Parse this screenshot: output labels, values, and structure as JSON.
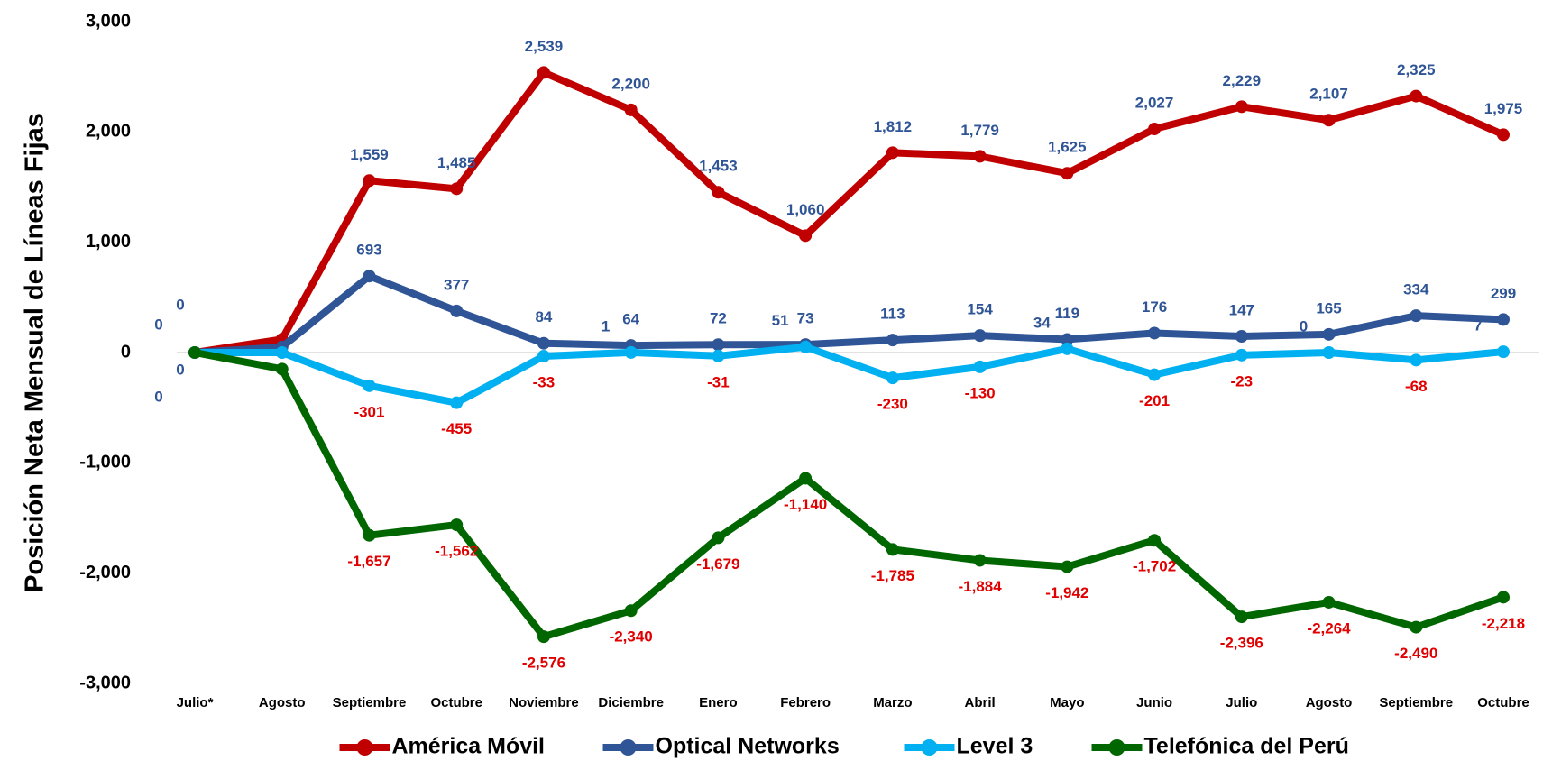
{
  "chart_data": {
    "type": "line",
    "y_axis_label": "Posición Neta Mensual de Líneas Fijas",
    "categories": [
      "Julio*",
      "Agosto",
      "Septiembre",
      "Octubre",
      "Noviembre",
      "Diciembre",
      "Enero",
      "Febrero",
      "Marzo",
      "Abril",
      "Mayo",
      "Junio",
      "Julio",
      "Agosto",
      "Septiembre",
      "Octubre"
    ],
    "ylim": [
      -3000,
      3000
    ],
    "yticks": [
      {
        "value": -3000,
        "label": "-3,000"
      },
      {
        "value": -2000,
        "label": "-2,000"
      },
      {
        "value": -1000,
        "label": "-1,000"
      },
      0,
      {
        "value": 1000,
        "label": "1,000"
      },
      {
        "value": 2000,
        "label": "2,000"
      },
      {
        "value": 3000,
        "label": "3,000"
      }
    ],
    "grid": false,
    "legend": "bottom",
    "label_colors": {
      "positive": "#2f5597",
      "negative": "#e00000"
    },
    "series": [
      {
        "name": "América Móvil",
        "color": "#c00000",
        "values": [
          0,
          120,
          1559,
          1485,
          2539,
          2200,
          1453,
          1060,
          1812,
          1779,
          1625,
          2027,
          2229,
          2107,
          2325,
          1975
        ],
        "value_labels": [
          "0",
          null,
          "1,559",
          "1,485",
          "2,539",
          "2,200",
          "1,453",
          "1,060",
          "1,812",
          "1,779",
          "1,625",
          "2,027",
          "2,229",
          "2,107",
          "2,325",
          "1,975"
        ]
      },
      {
        "name": "Optical Networks",
        "color": "#2f5597",
        "values": [
          0,
          50,
          693,
          377,
          84,
          64,
          72,
          73,
          113,
          154,
          119,
          176,
          147,
          165,
          334,
          299
        ],
        "value_labels": [
          "0",
          null,
          "693",
          "377",
          "84",
          "64",
          "72",
          "73",
          "113",
          "154",
          "119",
          "176",
          "147",
          "165",
          "334",
          "299"
        ]
      },
      {
        "name": "Level 3",
        "color": "#00b0f0",
        "values": [
          0,
          0,
          -301,
          -455,
          -33,
          1,
          -31,
          51,
          -230,
          -130,
          34,
          -201,
          -23,
          0,
          -68,
          7
        ],
        "value_labels": [
          "0",
          null,
          "-301",
          "-455",
          "-33",
          "1",
          "-31",
          "51",
          "-230",
          "-130",
          "34",
          "-201",
          "-23",
          "0",
          "-68",
          "7"
        ]
      },
      {
        "name": "Telefónica del Perú",
        "color": "#006600",
        "values": [
          0,
          -150,
          -1657,
          -1562,
          -2576,
          -2340,
          -1679,
          -1140,
          -1785,
          -1884,
          -1942,
          -1702,
          -2396,
          -2264,
          -2490,
          -2218
        ],
        "value_labels": [
          "0",
          null,
          "-1,657",
          "-1,562",
          "-2,576",
          "-2,340",
          "-1,679",
          "-1,140",
          "-1,785",
          "-1,884",
          "-1,942",
          "-1,702",
          "-2,396",
          "-2,264",
          "-2,490",
          "-2,218"
        ]
      }
    ]
  }
}
